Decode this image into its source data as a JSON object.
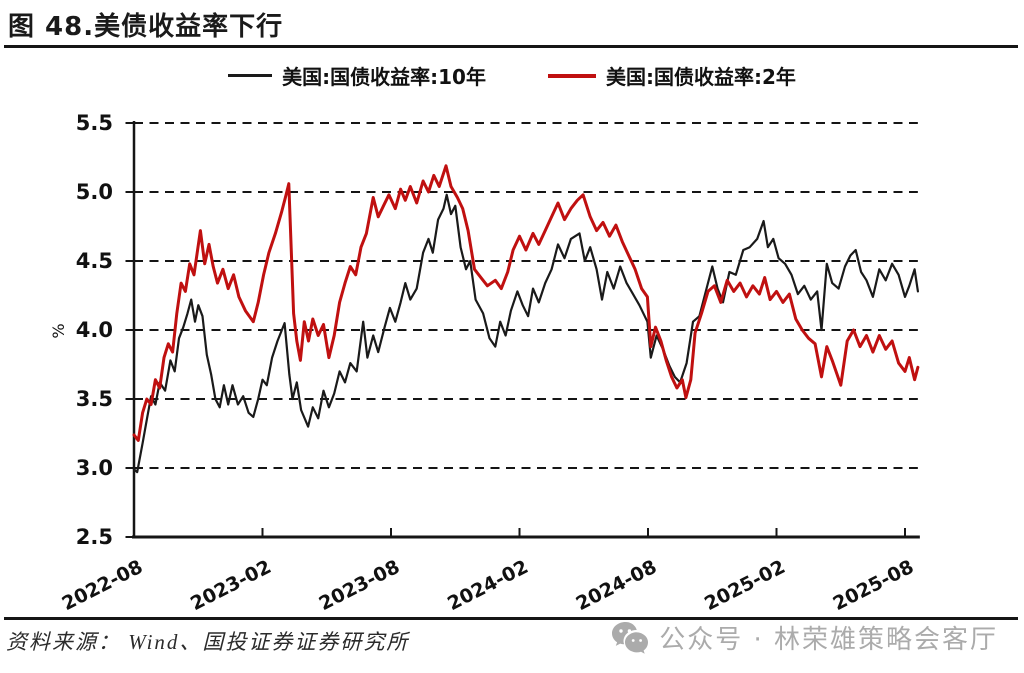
{
  "header": {
    "title": "图 48.美债收益率下行"
  },
  "legend": {
    "items": [
      {
        "label": "美国:国债收益率:10年",
        "color": "#1a1a1a"
      },
      {
        "label": "美国:国债收益率:2年",
        "color": "#c01010"
      }
    ]
  },
  "footer": {
    "source": "资料来源： Wind、国投证券证券研究所",
    "watermark": "公众号 · 林荣雄策略会客厅",
    "watermark_icon": "wechat-icon",
    "watermark_color": "#ababab"
  },
  "chart_data": {
    "type": "line",
    "title": "图 48.美债收益率下行",
    "xlabel": "",
    "ylabel": "%",
    "ylim": [
      2.5,
      5.5
    ],
    "ytick_values": [
      5.5,
      5.0,
      4.5,
      4.0,
      3.5,
      3.0,
      2.5
    ],
    "ytick_labels": [
      "5.5",
      "5.0",
      "4.5",
      "4.0",
      "3.5",
      "3.0",
      "2.5"
    ],
    "xtick_labels": [
      "2022-08",
      "2023-02",
      "2023-08",
      "2024-02",
      "2024-08",
      "2025-02",
      "2025-08"
    ],
    "xtick_month_positions": [
      0,
      6,
      12,
      18,
      24,
      30,
      36
    ],
    "x_unit": "months since 2022-08",
    "x_range_months": [
      0,
      36.6
    ],
    "grid": "horizontal-dashed",
    "legend_position": "top",
    "axis_color": "#151515",
    "series": [
      {
        "id": "us10y",
        "name": "美国:国债收益率:10年",
        "color": "#1a1a1a",
        "stroke_width": 2.2,
        "points": [
          [
            0,
            2.99
          ],
          [
            0.15,
            2.97
          ],
          [
            0.4,
            3.18
          ],
          [
            0.6,
            3.35
          ],
          [
            0.8,
            3.52
          ],
          [
            1.0,
            3.46
          ],
          [
            1.2,
            3.62
          ],
          [
            1.45,
            3.56
          ],
          [
            1.7,
            3.78
          ],
          [
            1.9,
            3.7
          ],
          [
            2.1,
            3.94
          ],
          [
            2.3,
            4.02
          ],
          [
            2.5,
            4.12
          ],
          [
            2.67,
            4.22
          ],
          [
            2.85,
            4.06
          ],
          [
            3.0,
            4.18
          ],
          [
            3.2,
            4.1
          ],
          [
            3.4,
            3.82
          ],
          [
            3.6,
            3.68
          ],
          [
            3.8,
            3.5
          ],
          [
            4.0,
            3.44
          ],
          [
            4.2,
            3.6
          ],
          [
            4.4,
            3.46
          ],
          [
            4.6,
            3.6
          ],
          [
            4.85,
            3.46
          ],
          [
            5.1,
            3.52
          ],
          [
            5.35,
            3.4
          ],
          [
            5.57,
            3.37
          ],
          [
            5.8,
            3.5
          ],
          [
            6.0,
            3.64
          ],
          [
            6.2,
            3.6
          ],
          [
            6.45,
            3.8
          ],
          [
            6.7,
            3.92
          ],
          [
            7.03,
            4.05
          ],
          [
            7.25,
            3.68
          ],
          [
            7.4,
            3.5
          ],
          [
            7.6,
            3.62
          ],
          [
            7.8,
            3.42
          ],
          [
            8.13,
            3.3
          ],
          [
            8.35,
            3.44
          ],
          [
            8.6,
            3.36
          ],
          [
            8.85,
            3.56
          ],
          [
            9.1,
            3.44
          ],
          [
            9.35,
            3.54
          ],
          [
            9.6,
            3.7
          ],
          [
            9.85,
            3.62
          ],
          [
            10.1,
            3.76
          ],
          [
            10.4,
            3.7
          ],
          [
            10.7,
            4.06
          ],
          [
            10.9,
            3.8
          ],
          [
            11.17,
            3.96
          ],
          [
            11.4,
            3.84
          ],
          [
            11.7,
            4.02
          ],
          [
            11.95,
            4.16
          ],
          [
            12.2,
            4.06
          ],
          [
            12.45,
            4.2
          ],
          [
            12.67,
            4.34
          ],
          [
            12.9,
            4.22
          ],
          [
            13.2,
            4.3
          ],
          [
            13.5,
            4.56
          ],
          [
            13.75,
            4.66
          ],
          [
            13.95,
            4.56
          ],
          [
            14.2,
            4.8
          ],
          [
            14.45,
            4.88
          ],
          [
            14.6,
            4.98
          ],
          [
            14.8,
            4.84
          ],
          [
            15.0,
            4.9
          ],
          [
            15.25,
            4.6
          ],
          [
            15.5,
            4.44
          ],
          [
            15.7,
            4.5
          ],
          [
            15.95,
            4.22
          ],
          [
            16.3,
            4.12
          ],
          [
            16.6,
            3.94
          ],
          [
            16.87,
            3.88
          ],
          [
            17.1,
            4.06
          ],
          [
            17.35,
            3.96
          ],
          [
            17.6,
            4.14
          ],
          [
            17.9,
            4.28
          ],
          [
            18.15,
            4.18
          ],
          [
            18.4,
            4.1
          ],
          [
            18.63,
            4.3
          ],
          [
            18.9,
            4.2
          ],
          [
            19.2,
            4.34
          ],
          [
            19.5,
            4.44
          ],
          [
            19.8,
            4.62
          ],
          [
            20.1,
            4.52
          ],
          [
            20.4,
            4.66
          ],
          [
            20.8,
            4.7
          ],
          [
            21.05,
            4.5
          ],
          [
            21.3,
            4.6
          ],
          [
            21.6,
            4.44
          ],
          [
            21.85,
            4.22
          ],
          [
            22.1,
            4.42
          ],
          [
            22.4,
            4.3
          ],
          [
            22.7,
            4.46
          ],
          [
            23.0,
            4.34
          ],
          [
            23.3,
            4.26
          ],
          [
            23.6,
            4.18
          ],
          [
            23.97,
            4.06
          ],
          [
            24.13,
            3.8
          ],
          [
            24.4,
            3.96
          ],
          [
            24.7,
            3.86
          ],
          [
            25.0,
            3.74
          ],
          [
            25.25,
            3.66
          ],
          [
            25.5,
            3.62
          ],
          [
            25.8,
            3.76
          ],
          [
            26.1,
            4.06
          ],
          [
            26.4,
            4.1
          ],
          [
            26.7,
            4.28
          ],
          [
            27.0,
            4.46
          ],
          [
            27.25,
            4.3
          ],
          [
            27.5,
            4.2
          ],
          [
            27.8,
            4.42
          ],
          [
            28.1,
            4.4
          ],
          [
            28.45,
            4.58
          ],
          [
            28.75,
            4.6
          ],
          [
            29.1,
            4.66
          ],
          [
            29.4,
            4.79
          ],
          [
            29.6,
            4.6
          ],
          [
            29.85,
            4.66
          ],
          [
            30.1,
            4.52
          ],
          [
            30.4,
            4.48
          ],
          [
            30.7,
            4.4
          ],
          [
            31.0,
            4.26
          ],
          [
            31.3,
            4.32
          ],
          [
            31.6,
            4.22
          ],
          [
            31.9,
            4.28
          ],
          [
            32.1,
            4.0
          ],
          [
            32.35,
            4.48
          ],
          [
            32.6,
            4.34
          ],
          [
            32.9,
            4.3
          ],
          [
            33.2,
            4.46
          ],
          [
            33.45,
            4.54
          ],
          [
            33.7,
            4.58
          ],
          [
            33.95,
            4.42
          ],
          [
            34.2,
            4.36
          ],
          [
            34.5,
            4.24
          ],
          [
            34.8,
            4.44
          ],
          [
            35.1,
            4.36
          ],
          [
            35.4,
            4.48
          ],
          [
            35.7,
            4.4
          ],
          [
            36.0,
            4.24
          ],
          [
            36.2,
            4.32
          ],
          [
            36.45,
            4.44
          ],
          [
            36.6,
            4.28
          ]
        ]
      },
      {
        "id": "us2y",
        "name": "美国:国债收益率:2年",
        "color": "#c01010",
        "stroke_width": 3,
        "points": [
          [
            0,
            3.24
          ],
          [
            0.2,
            3.2
          ],
          [
            0.4,
            3.4
          ],
          [
            0.6,
            3.5
          ],
          [
            0.8,
            3.46
          ],
          [
            1.0,
            3.64
          ],
          [
            1.2,
            3.58
          ],
          [
            1.4,
            3.8
          ],
          [
            1.6,
            3.9
          ],
          [
            1.8,
            3.84
          ],
          [
            2.0,
            4.12
          ],
          [
            2.2,
            4.34
          ],
          [
            2.4,
            4.28
          ],
          [
            2.6,
            4.48
          ],
          [
            2.8,
            4.4
          ],
          [
            2.95,
            4.56
          ],
          [
            3.1,
            4.72
          ],
          [
            3.3,
            4.48
          ],
          [
            3.5,
            4.62
          ],
          [
            3.7,
            4.46
          ],
          [
            3.9,
            4.34
          ],
          [
            4.15,
            4.44
          ],
          [
            4.4,
            4.3
          ],
          [
            4.65,
            4.4
          ],
          [
            4.9,
            4.24
          ],
          [
            5.2,
            4.14
          ],
          [
            5.57,
            4.06
          ],
          [
            5.8,
            4.2
          ],
          [
            6.05,
            4.4
          ],
          [
            6.3,
            4.56
          ],
          [
            6.6,
            4.7
          ],
          [
            6.9,
            4.86
          ],
          [
            7.1,
            4.98
          ],
          [
            7.23,
            5.06
          ],
          [
            7.45,
            4.12
          ],
          [
            7.6,
            3.92
          ],
          [
            7.77,
            3.78
          ],
          [
            7.95,
            4.06
          ],
          [
            8.15,
            3.92
          ],
          [
            8.35,
            4.08
          ],
          [
            8.6,
            3.96
          ],
          [
            8.85,
            4.04
          ],
          [
            9.1,
            3.8
          ],
          [
            9.35,
            3.96
          ],
          [
            9.6,
            4.2
          ],
          [
            9.85,
            4.34
          ],
          [
            10.1,
            4.46
          ],
          [
            10.35,
            4.4
          ],
          [
            10.6,
            4.6
          ],
          [
            10.85,
            4.7
          ],
          [
            11.17,
            4.96
          ],
          [
            11.4,
            4.82
          ],
          [
            11.65,
            4.9
          ],
          [
            11.9,
            4.98
          ],
          [
            12.2,
            4.88
          ],
          [
            12.45,
            5.02
          ],
          [
            12.67,
            4.94
          ],
          [
            12.9,
            5.04
          ],
          [
            13.2,
            4.92
          ],
          [
            13.5,
            5.08
          ],
          [
            13.75,
            5.0
          ],
          [
            14.0,
            5.12
          ],
          [
            14.25,
            5.04
          ],
          [
            14.57,
            5.19
          ],
          [
            14.8,
            5.04
          ],
          [
            15.1,
            4.96
          ],
          [
            15.35,
            4.88
          ],
          [
            15.6,
            4.72
          ],
          [
            15.9,
            4.44
          ],
          [
            16.2,
            4.38
          ],
          [
            16.5,
            4.32
          ],
          [
            16.87,
            4.36
          ],
          [
            17.15,
            4.3
          ],
          [
            17.45,
            4.42
          ],
          [
            17.7,
            4.58
          ],
          [
            18.0,
            4.68
          ],
          [
            18.3,
            4.58
          ],
          [
            18.63,
            4.7
          ],
          [
            18.9,
            4.62
          ],
          [
            19.2,
            4.72
          ],
          [
            19.5,
            4.82
          ],
          [
            19.8,
            4.92
          ],
          [
            20.1,
            4.8
          ],
          [
            20.4,
            4.88
          ],
          [
            20.7,
            4.94
          ],
          [
            20.97,
            4.98
          ],
          [
            21.3,
            4.82
          ],
          [
            21.6,
            4.72
          ],
          [
            21.9,
            4.78
          ],
          [
            22.2,
            4.68
          ],
          [
            22.5,
            4.76
          ],
          [
            22.8,
            4.64
          ],
          [
            23.1,
            4.54
          ],
          [
            23.4,
            4.44
          ],
          [
            23.7,
            4.3
          ],
          [
            23.97,
            4.24
          ],
          [
            24.13,
            3.88
          ],
          [
            24.35,
            4.02
          ],
          [
            24.6,
            3.92
          ],
          [
            24.85,
            3.78
          ],
          [
            25.1,
            3.66
          ],
          [
            25.35,
            3.58
          ],
          [
            25.6,
            3.64
          ],
          [
            25.77,
            3.51
          ],
          [
            26.0,
            3.64
          ],
          [
            26.2,
            3.98
          ],
          [
            26.5,
            4.12
          ],
          [
            26.8,
            4.28
          ],
          [
            27.1,
            4.32
          ],
          [
            27.4,
            4.2
          ],
          [
            27.7,
            4.36
          ],
          [
            28.0,
            4.28
          ],
          [
            28.3,
            4.34
          ],
          [
            28.6,
            4.24
          ],
          [
            28.9,
            4.32
          ],
          [
            29.2,
            4.26
          ],
          [
            29.45,
            4.38
          ],
          [
            29.7,
            4.22
          ],
          [
            30.0,
            4.28
          ],
          [
            30.3,
            4.2
          ],
          [
            30.6,
            4.26
          ],
          [
            30.9,
            4.08
          ],
          [
            31.2,
            4.0
          ],
          [
            31.5,
            3.94
          ],
          [
            31.8,
            3.9
          ],
          [
            32.1,
            3.66
          ],
          [
            32.35,
            3.88
          ],
          [
            32.6,
            3.78
          ],
          [
            33.0,
            3.6
          ],
          [
            33.3,
            3.92
          ],
          [
            33.6,
            4.0
          ],
          [
            33.9,
            3.88
          ],
          [
            34.2,
            3.96
          ],
          [
            34.5,
            3.84
          ],
          [
            34.8,
            3.96
          ],
          [
            35.1,
            3.86
          ],
          [
            35.4,
            3.92
          ],
          [
            35.7,
            3.76
          ],
          [
            36.0,
            3.7
          ],
          [
            36.2,
            3.8
          ],
          [
            36.45,
            3.64
          ],
          [
            36.6,
            3.73
          ]
        ]
      }
    ]
  }
}
